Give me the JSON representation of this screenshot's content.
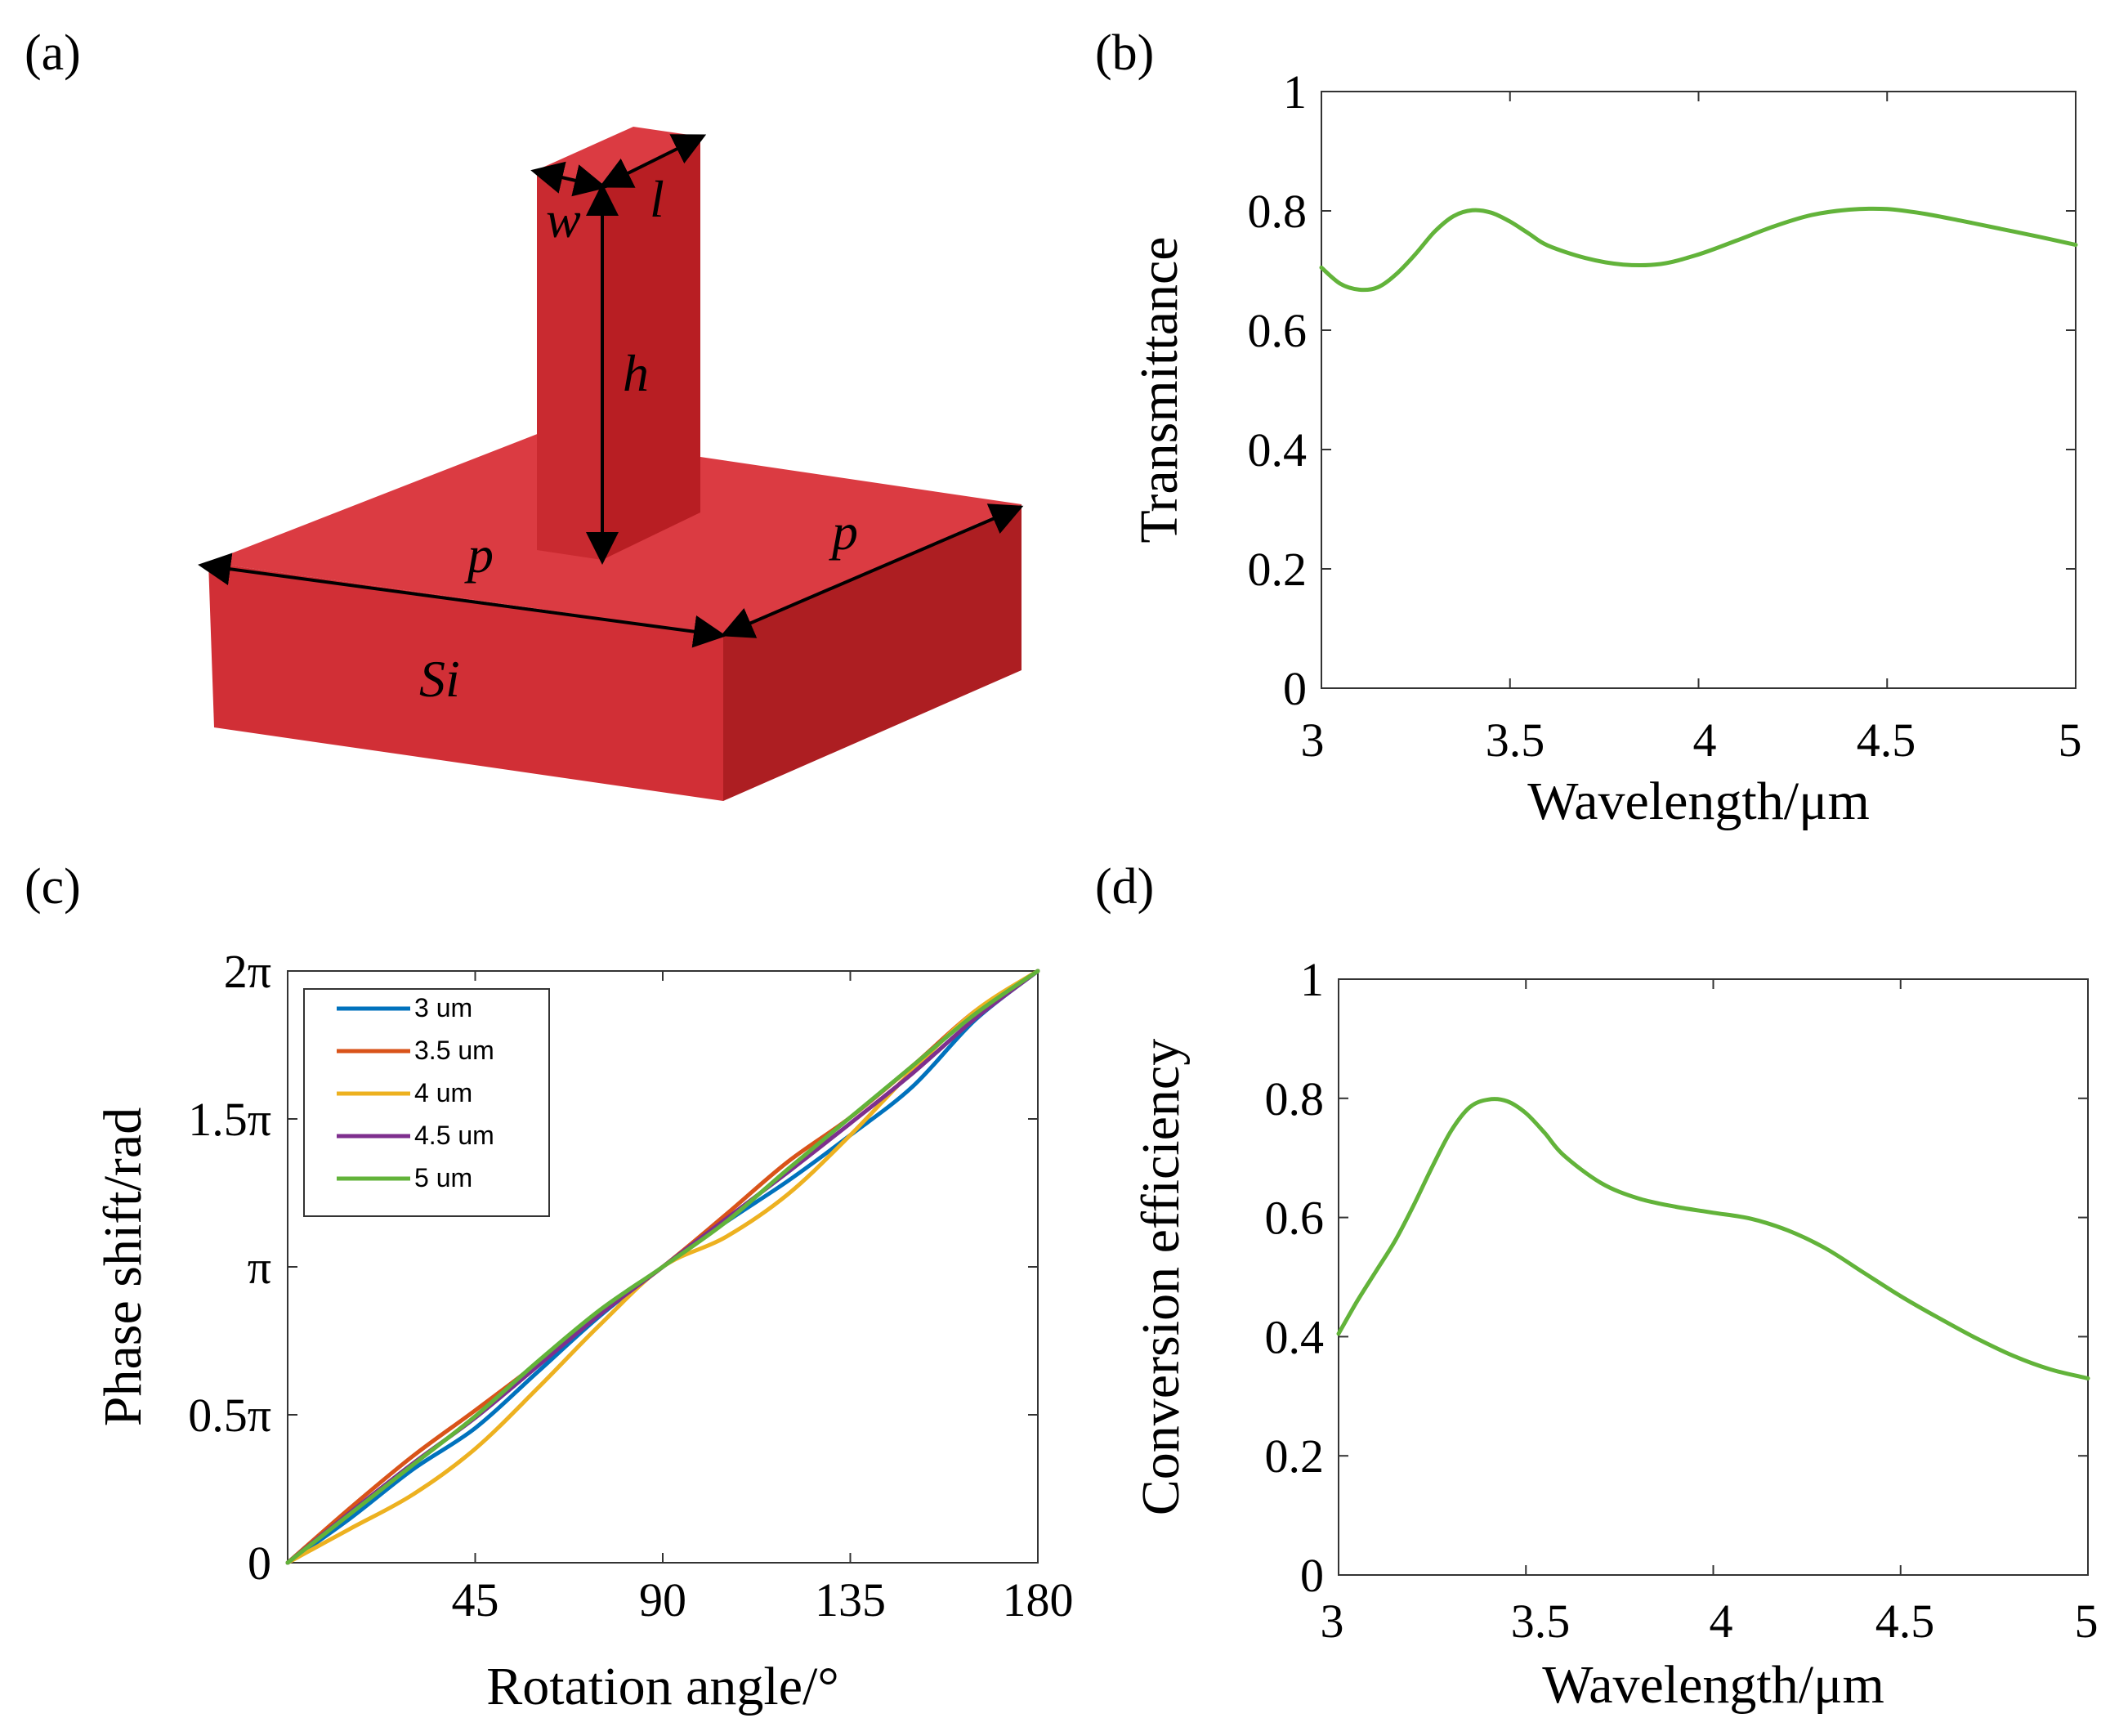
{
  "panels": {
    "a": "(a)",
    "b": "(b)",
    "c": "(c)",
    "d": "(d)"
  },
  "schematic": {
    "labels": {
      "w": "w",
      "l": "l",
      "h": "h",
      "p_front": "p",
      "p_side": "p",
      "material": "Si"
    },
    "colors": {
      "top": "#db3b42",
      "front": "#d12f36",
      "side": "#ad1e22",
      "pillar_front": "#c92a30",
      "pillar_side": "#b81e23"
    }
  },
  "chart_data": [
    {
      "id": "b",
      "type": "line",
      "title": "",
      "xlabel": "Wavelength/μm",
      "ylabel": "Transmittance",
      "xlim": [
        3,
        5
      ],
      "ylim": [
        0,
        1
      ],
      "xticks": [
        "3",
        "3.5",
        "4",
        "4.5",
        "5"
      ],
      "yticks": [
        "0",
        "0.2",
        "0.4",
        "0.6",
        "0.8",
        "1"
      ],
      "series": [
        {
          "name": "Transmittance",
          "color": "#62b33a",
          "x": [
            3.0,
            3.05,
            3.1,
            3.15,
            3.2,
            3.25,
            3.3,
            3.35,
            3.4,
            3.45,
            3.5,
            3.55,
            3.6,
            3.7,
            3.8,
            3.9,
            4.0,
            4.1,
            4.2,
            4.3,
            4.4,
            4.5,
            4.6,
            4.7,
            4.8,
            4.9,
            5.0
          ],
          "y": [
            0.705,
            0.678,
            0.668,
            0.672,
            0.695,
            0.728,
            0.765,
            0.791,
            0.801,
            0.797,
            0.782,
            0.762,
            0.742,
            0.721,
            0.71,
            0.711,
            0.727,
            0.75,
            0.774,
            0.793,
            0.802,
            0.803,
            0.795,
            0.783,
            0.77,
            0.757,
            0.743
          ]
        }
      ]
    },
    {
      "id": "c",
      "type": "line",
      "title": "",
      "xlabel": "Rotation angle/°",
      "ylabel": "Phase shift/rad",
      "xlim": [
        0,
        180
      ],
      "ylim": [
        0,
        2
      ],
      "xticks": [
        "45",
        "90",
        "135",
        "180"
      ],
      "yticks": [
        "0",
        "0.5π",
        "π",
        "1.5π",
        "2π"
      ],
      "legend": "top-left",
      "series": [
        {
          "name": "3 um",
          "color": "#0072bd",
          "x": [
            0,
            15,
            30,
            45,
            60,
            75,
            90,
            105,
            120,
            135,
            150,
            165,
            180
          ],
          "y": [
            0,
            0.15,
            0.315,
            0.455,
            0.645,
            0.835,
            1.0,
            1.15,
            1.29,
            1.445,
            1.61,
            1.835,
            2.0
          ]
        },
        {
          "name": "3.5 um",
          "color": "#d95319",
          "x": [
            0,
            15,
            30,
            45,
            60,
            75,
            90,
            105,
            120,
            135,
            150,
            165,
            180
          ],
          "y": [
            0,
            0.185,
            0.36,
            0.515,
            0.675,
            0.845,
            1.0,
            1.175,
            1.355,
            1.505,
            1.68,
            1.865,
            2.0
          ]
        },
        {
          "name": "4 um",
          "color": "#edb120",
          "x": [
            0,
            15,
            30,
            45,
            60,
            75,
            90,
            105,
            120,
            135,
            150,
            165,
            180
          ],
          "y": [
            0,
            0.115,
            0.23,
            0.385,
            0.59,
            0.805,
            1.0,
            1.1,
            1.245,
            1.445,
            1.665,
            1.865,
            2.0
          ]
        },
        {
          "name": "4.5 um",
          "color": "#7e2f8e",
          "x": [
            0,
            15,
            30,
            45,
            60,
            75,
            90,
            105,
            120,
            135,
            150,
            165,
            180
          ],
          "y": [
            0,
            0.17,
            0.335,
            0.49,
            0.665,
            0.84,
            1.0,
            1.16,
            1.32,
            1.485,
            1.655,
            1.84,
            2.0
          ]
        },
        {
          "name": "5 um",
          "color": "#62b33a",
          "x": [
            0,
            15,
            30,
            45,
            60,
            75,
            90,
            105,
            120,
            135,
            150,
            165,
            180
          ],
          "y": [
            0,
            0.165,
            0.33,
            0.495,
            0.68,
            0.855,
            1.0,
            1.15,
            1.33,
            1.505,
            1.68,
            1.855,
            2.0
          ]
        }
      ]
    },
    {
      "id": "d",
      "type": "line",
      "title": "",
      "xlabel": "Wavelength/μm",
      "ylabel": "Conversion efficiency",
      "xlim": [
        3,
        5
      ],
      "ylim": [
        0,
        1
      ],
      "xticks": [
        "3",
        "3.5",
        "4",
        "4.5",
        "5"
      ],
      "yticks": [
        "0",
        "0.2",
        "0.4",
        "0.6",
        "0.8",
        "1"
      ],
      "series": [
        {
          "name": "Conversion efficiency",
          "color": "#62b33a",
          "x": [
            3.0,
            3.05,
            3.1,
            3.15,
            3.2,
            3.25,
            3.3,
            3.35,
            3.4,
            3.45,
            3.5,
            3.55,
            3.6,
            3.7,
            3.8,
            3.9,
            4.0,
            4.1,
            4.2,
            4.3,
            4.4,
            4.5,
            4.6,
            4.7,
            4.8,
            4.9,
            5.0
          ],
          "y": [
            0.405,
            0.46,
            0.51,
            0.56,
            0.62,
            0.685,
            0.745,
            0.785,
            0.798,
            0.795,
            0.775,
            0.742,
            0.705,
            0.658,
            0.632,
            0.618,
            0.608,
            0.598,
            0.578,
            0.548,
            0.508,
            0.468,
            0.432,
            0.398,
            0.368,
            0.345,
            0.33
          ]
        }
      ]
    }
  ]
}
